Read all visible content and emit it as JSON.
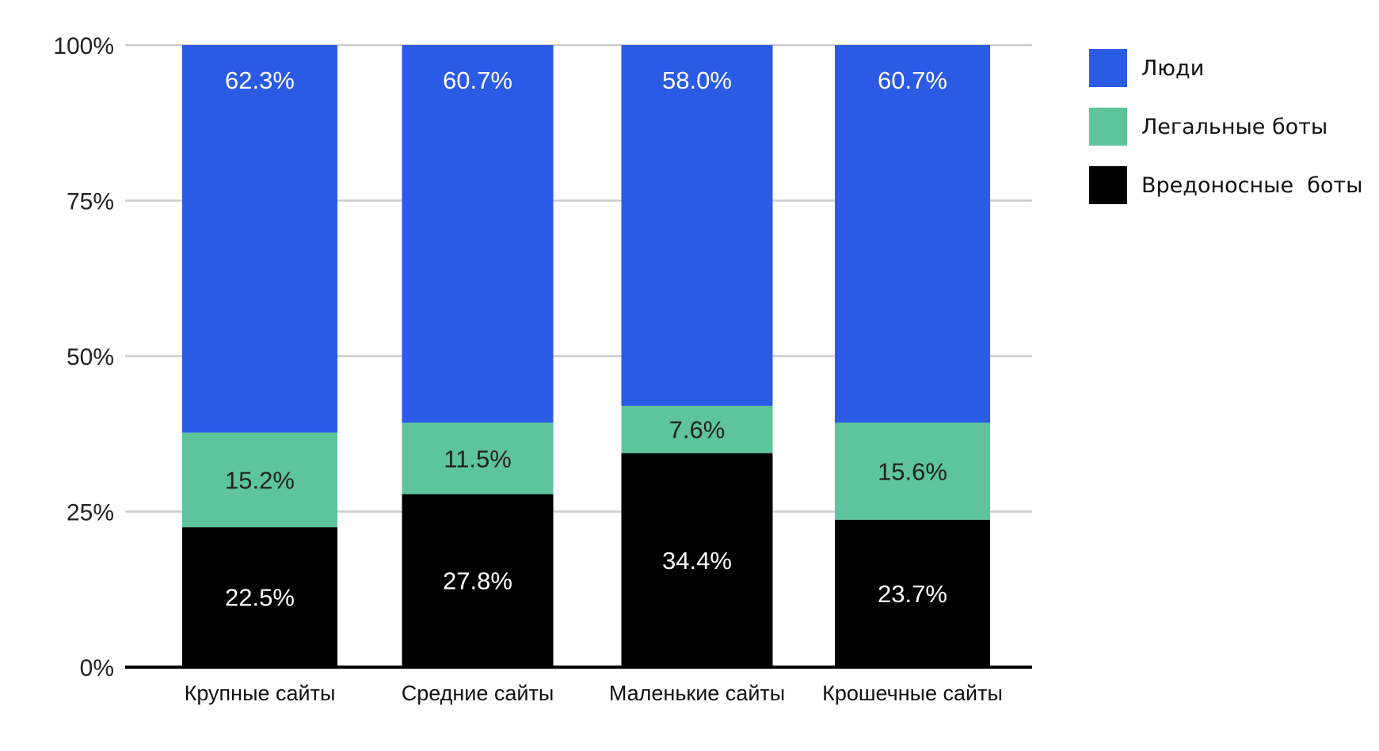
{
  "chart_data": {
    "type": "bar",
    "stacked": true,
    "title": "",
    "xlabel": "",
    "ylabel": "",
    "ylim": [
      0,
      100
    ],
    "y_ticks": [
      "0%",
      "25%",
      "50%",
      "75%",
      "100%"
    ],
    "categories": [
      "Крупные сайты",
      "Средние сайты",
      "Маленькие сайты",
      "Крошечные сайты"
    ],
    "series": [
      {
        "name": "Вредоносные  боты",
        "color": "#000000",
        "label_class": "light",
        "values": [
          22.5,
          27.8,
          34.4,
          23.7
        ],
        "labels": [
          "22.5%",
          "27.8%",
          "34.4%",
          "23.7%"
        ]
      },
      {
        "name": "Легальные боты",
        "color": "#5ec49b",
        "label_class": "dark",
        "values": [
          15.2,
          11.5,
          7.6,
          15.6
        ],
        "labels": [
          "15.2%",
          "11.5%",
          "7.6%",
          "15.6%"
        ]
      },
      {
        "name": "Люди",
        "color": "#2b5ae5",
        "label_class": "light",
        "values": [
          62.3,
          60.7,
          58.0,
          60.7
        ],
        "labels": [
          "62.3%",
          "60.7%",
          "58.0%",
          "60.7%"
        ]
      }
    ],
    "legend_order": [
      "Люди",
      "Легальные боты",
      "Вредоносные  боты"
    ],
    "grid": true,
    "legend_position": "right"
  }
}
